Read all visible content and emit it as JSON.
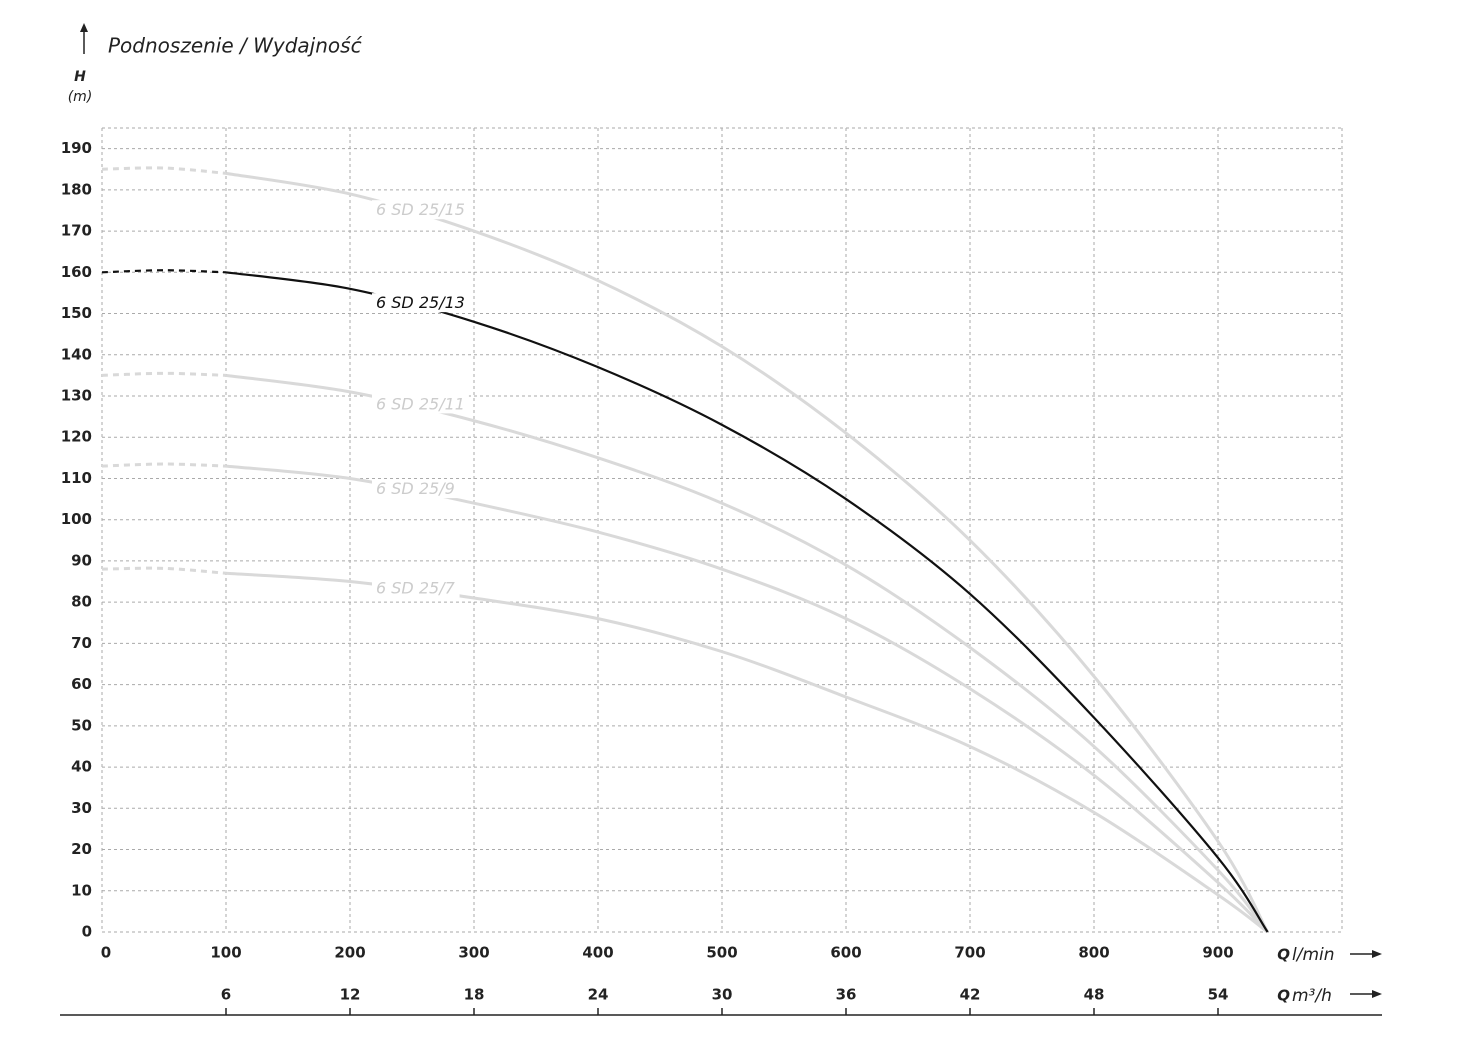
{
  "chart_data": {
    "type": "line",
    "title": "Podnoszenie / Wydajność",
    "ylabel": {
      "symbol": "H",
      "unit": "(m)"
    },
    "xlabel": {
      "symbol": "Q",
      "unit": "l/min"
    },
    "x2label": {
      "symbol": "Q",
      "unit": "m³/h"
    },
    "x": [
      0,
      50,
      100,
      200,
      300,
      400,
      500,
      600,
      700,
      800,
      900,
      940
    ],
    "series": [
      {
        "name": "6 SD 25/15",
        "color": "#d9d9d9",
        "values": [
          185,
          185.3,
          184,
          179,
          170,
          158,
          142,
          121,
          95,
          62,
          22,
          0
        ]
      },
      {
        "name": "6 SD 25/13",
        "color": "#111111",
        "values": [
          160,
          160.5,
          160,
          156,
          148,
          137,
          123,
          105,
          82,
          52,
          18,
          0
        ]
      },
      {
        "name": "6 SD 25/11",
        "color": "#d9d9d9",
        "values": [
          135,
          135.5,
          135,
          131,
          124,
          115,
          104,
          89,
          69,
          45,
          15,
          0
        ]
      },
      {
        "name": "6 SD 25/9",
        "color": "#d9d9d9",
        "values": [
          113,
          113.5,
          113,
          110,
          104,
          97,
          88,
          76,
          59,
          38,
          12,
          0
        ]
      },
      {
        "name": "6 SD 25/7",
        "color": "#d9d9d9",
        "values": [
          88,
          88.2,
          87,
          85,
          81,
          76,
          68,
          57,
          45,
          29,
          9,
          0
        ]
      }
    ],
    "dashed_below_x": 100,
    "xlim": [
      0,
      1000
    ],
    "xticks": [
      0,
      100,
      200,
      300,
      400,
      500,
      600,
      700,
      800,
      900
    ],
    "x2lim": [
      0,
      60
    ],
    "x2ticks": [
      6,
      12,
      18,
      24,
      30,
      36,
      42,
      48,
      54
    ],
    "ylim": [
      0,
      195
    ],
    "yticks": [
      0,
      10,
      20,
      30,
      40,
      50,
      60,
      70,
      80,
      90,
      100,
      110,
      120,
      130,
      140,
      150,
      160,
      170,
      180,
      190
    ],
    "grid": true
  }
}
